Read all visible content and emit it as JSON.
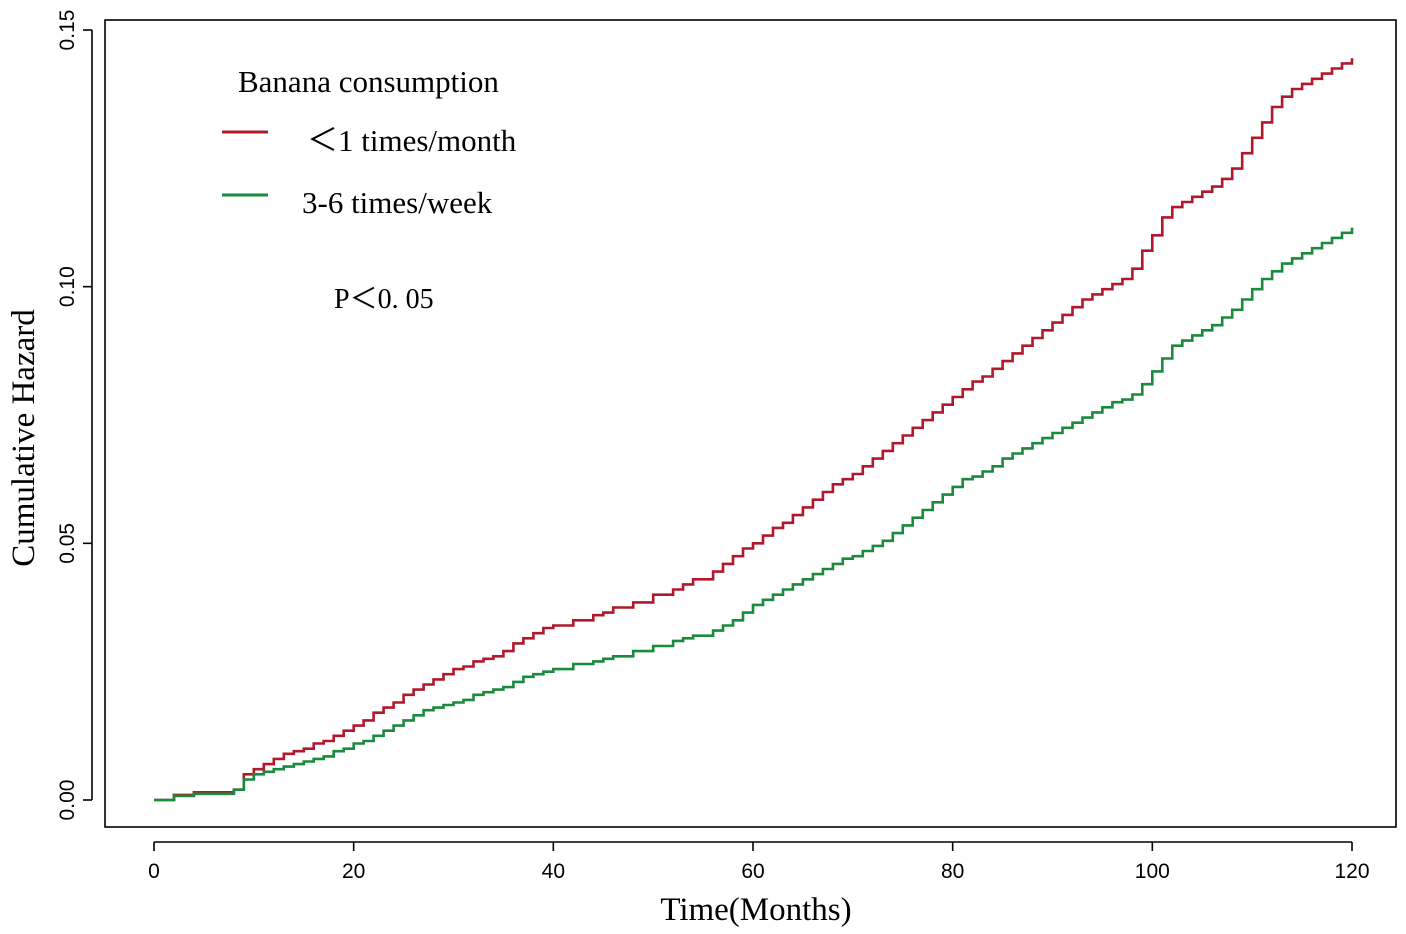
{
  "chart_data": {
    "type": "line",
    "xlabel": "Time(Months)",
    "ylabel": "Cumulative Hazard",
    "xlim": [
      0,
      120
    ],
    "ylim": [
      0,
      0.15
    ],
    "x_ticks": [
      0,
      20,
      40,
      60,
      80,
      100,
      120
    ],
    "x_tick_labels": [
      "0",
      "20",
      "40",
      "60",
      "80",
      "100",
      "120"
    ],
    "y_ticks": [
      0,
      0.05,
      0.1,
      0.15
    ],
    "y_tick_labels": [
      "0.00",
      "0.05",
      "0.10",
      "0.15"
    ],
    "grid": false,
    "legend": {
      "title": "Banana consumption",
      "placement": "top-left"
    },
    "annotation": "P＜0. 05",
    "series": [
      {
        "name": "＜1 times/month",
        "color": "#b2182b",
        "x": [
          0,
          2,
          4,
          8,
          9,
          10,
          11,
          12,
          13,
          14,
          15,
          16,
          17,
          18,
          19,
          20,
          21,
          22,
          23,
          24,
          25,
          26,
          27,
          28,
          29,
          30,
          31,
          32,
          33,
          34,
          35,
          36,
          37,
          38,
          39,
          40,
          42,
          44,
          45,
          46,
          48,
          50,
          52,
          53,
          54,
          56,
          57,
          58,
          59,
          60,
          61,
          62,
          63,
          64,
          65,
          66,
          67,
          68,
          69,
          70,
          71,
          72,
          73,
          74,
          75,
          76,
          77,
          78,
          79,
          80,
          81,
          82,
          83,
          84,
          85,
          86,
          87,
          88,
          89,
          90,
          91,
          92,
          93,
          94,
          95,
          96,
          97,
          98,
          99,
          100,
          101,
          102,
          103,
          104,
          105,
          106,
          107,
          108,
          109,
          110,
          111,
          112,
          113,
          114,
          115,
          116,
          117,
          118,
          119,
          120
        ],
        "values": [
          0,
          0.001,
          0.0015,
          0.002,
          0.005,
          0.006,
          0.007,
          0.008,
          0.009,
          0.0095,
          0.01,
          0.011,
          0.0115,
          0.0125,
          0.0135,
          0.0145,
          0.0155,
          0.017,
          0.018,
          0.019,
          0.0205,
          0.0215,
          0.0225,
          0.0235,
          0.0245,
          0.0255,
          0.026,
          0.027,
          0.0275,
          0.028,
          0.029,
          0.0305,
          0.0315,
          0.0325,
          0.0335,
          0.034,
          0.035,
          0.036,
          0.0365,
          0.0375,
          0.0385,
          0.04,
          0.041,
          0.042,
          0.043,
          0.0445,
          0.046,
          0.0475,
          0.049,
          0.05,
          0.0515,
          0.053,
          0.054,
          0.0555,
          0.057,
          0.0585,
          0.06,
          0.0615,
          0.0625,
          0.0635,
          0.065,
          0.0665,
          0.068,
          0.0695,
          0.071,
          0.0725,
          0.074,
          0.0755,
          0.077,
          0.0785,
          0.08,
          0.0815,
          0.0825,
          0.084,
          0.0855,
          0.087,
          0.0885,
          0.09,
          0.0915,
          0.093,
          0.0945,
          0.096,
          0.0975,
          0.0985,
          0.0995,
          0.1005,
          0.1015,
          0.1035,
          0.107,
          0.11,
          0.1135,
          0.1155,
          0.1165,
          0.1175,
          0.1185,
          0.1195,
          0.121,
          0.123,
          0.126,
          0.129,
          0.132,
          0.135,
          0.137,
          0.1385,
          0.1395,
          0.1405,
          0.1415,
          0.1425,
          0.1435,
          0.1445
        ]
      },
      {
        "name": "3-6 times/week",
        "color": "#1a8a3c",
        "x": [
          0,
          2,
          4,
          8,
          9,
          10,
          11,
          12,
          13,
          14,
          15,
          16,
          17,
          18,
          19,
          20,
          21,
          22,
          23,
          24,
          25,
          26,
          27,
          28,
          29,
          30,
          31,
          32,
          33,
          34,
          35,
          36,
          37,
          38,
          39,
          40,
          42,
          44,
          45,
          46,
          48,
          50,
          52,
          53,
          54,
          56,
          57,
          58,
          59,
          60,
          61,
          62,
          63,
          64,
          65,
          66,
          67,
          68,
          69,
          70,
          71,
          72,
          73,
          74,
          75,
          76,
          77,
          78,
          79,
          80,
          81,
          82,
          83,
          84,
          85,
          86,
          87,
          88,
          89,
          90,
          91,
          92,
          93,
          94,
          95,
          96,
          97,
          98,
          99,
          100,
          101,
          102,
          103,
          104,
          105,
          106,
          107,
          108,
          109,
          110,
          111,
          112,
          113,
          114,
          115,
          116,
          117,
          118,
          119,
          120
        ],
        "values": [
          0,
          0.0008,
          0.0012,
          0.002,
          0.004,
          0.005,
          0.0055,
          0.006,
          0.0065,
          0.007,
          0.0075,
          0.008,
          0.0085,
          0.0095,
          0.01,
          0.011,
          0.0115,
          0.0125,
          0.0135,
          0.0145,
          0.0155,
          0.0165,
          0.0175,
          0.018,
          0.0185,
          0.019,
          0.0195,
          0.0205,
          0.021,
          0.0215,
          0.022,
          0.023,
          0.024,
          0.0245,
          0.025,
          0.0255,
          0.0265,
          0.027,
          0.0275,
          0.028,
          0.029,
          0.03,
          0.031,
          0.0315,
          0.032,
          0.033,
          0.034,
          0.035,
          0.0365,
          0.038,
          0.039,
          0.04,
          0.041,
          0.042,
          0.043,
          0.044,
          0.045,
          0.046,
          0.047,
          0.0475,
          0.0485,
          0.0495,
          0.0505,
          0.052,
          0.0535,
          0.055,
          0.0565,
          0.058,
          0.0595,
          0.061,
          0.0625,
          0.063,
          0.064,
          0.065,
          0.0665,
          0.0675,
          0.0685,
          0.0695,
          0.0705,
          0.0715,
          0.0725,
          0.0735,
          0.0745,
          0.0755,
          0.0765,
          0.0775,
          0.078,
          0.079,
          0.081,
          0.0835,
          0.086,
          0.0885,
          0.0895,
          0.0905,
          0.0915,
          0.0925,
          0.094,
          0.0955,
          0.0975,
          0.0995,
          0.1015,
          0.103,
          0.1045,
          0.1055,
          0.1065,
          0.1075,
          0.1085,
          0.1095,
          0.1105,
          0.1115
        ]
      }
    ]
  }
}
